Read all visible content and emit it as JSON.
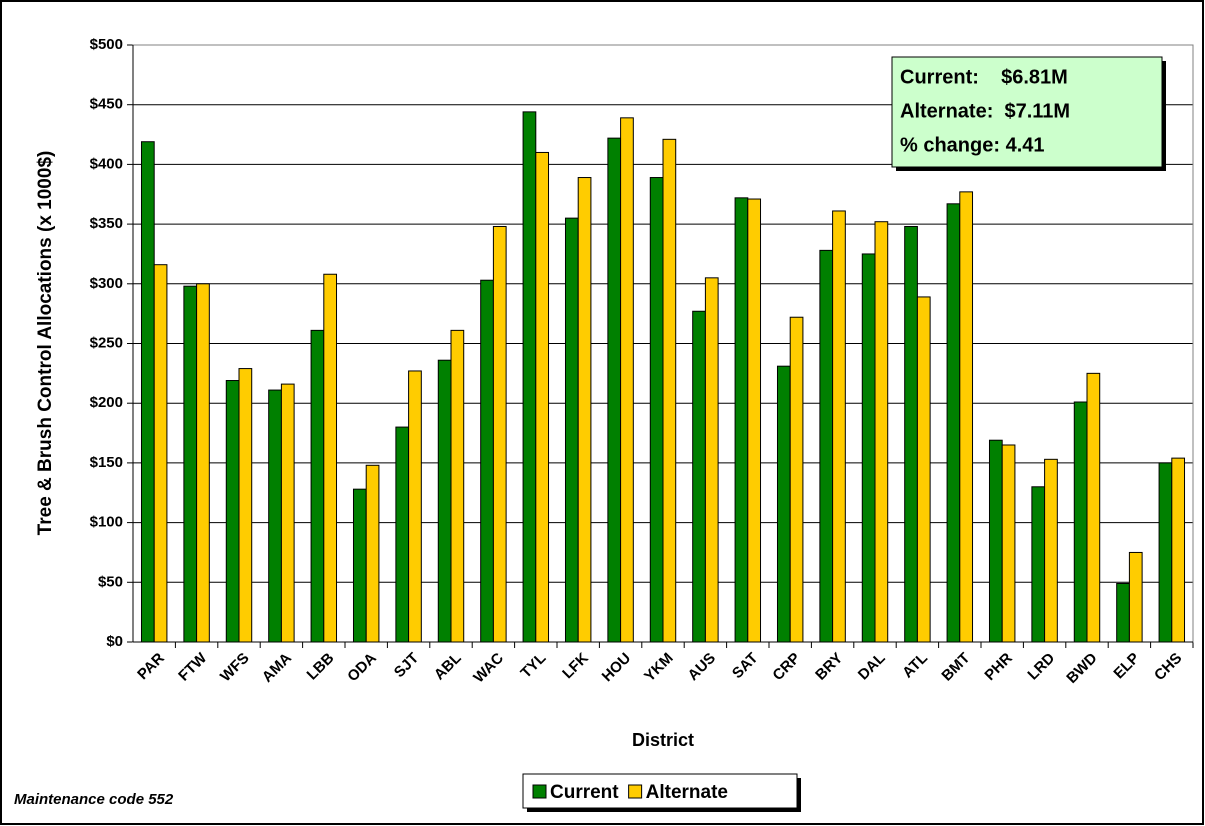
{
  "chart_data": {
    "type": "bar",
    "y_label": "Tree & Brush Control Allocations (x 1000$)",
    "x_label": "District",
    "footnote": "Maintenance code 552",
    "annotation": [
      "Current:    $6.81M",
      "Alternate:  $7.11M",
      "% change: 4.41"
    ],
    "categories": [
      "PAR",
      "FTW",
      "WFS",
      "AMA",
      "LBB",
      "ODA",
      "SJT",
      "ABL",
      "WAC",
      "TYL",
      "LFK",
      "HOU",
      "YKM",
      "AUS",
      "SAT",
      "CRP",
      "BRY",
      "DAL",
      "ATL",
      "BMT",
      "PHR",
      "LRD",
      "BWD",
      "ELP",
      "CHS"
    ],
    "series": [
      {
        "name": "Current",
        "color": "#008000",
        "values": [
          419,
          298,
          219,
          211,
          261,
          128,
          180,
          236,
          303,
          444,
          355,
          422,
          389,
          277,
          372,
          231,
          328,
          325,
          348,
          367,
          169,
          130,
          201,
          49,
          150
        ]
      },
      {
        "name": "Alternate",
        "color": "#ffcc00",
        "values": [
          316,
          300,
          229,
          216,
          308,
          148,
          227,
          261,
          348,
          410,
          389,
          439,
          421,
          305,
          371,
          272,
          361,
          352,
          289,
          377,
          165,
          153,
          225,
          75,
          154
        ]
      }
    ],
    "ylim": [
      0,
      500
    ],
    "yticks": [
      {
        "value": 0,
        "label": "$0"
      },
      {
        "value": 50,
        "label": "$50"
      },
      {
        "value": 100,
        "label": "$100"
      },
      {
        "value": 150,
        "label": "$150"
      },
      {
        "value": 200,
        "label": "$200"
      },
      {
        "value": 250,
        "label": "$250"
      },
      {
        "value": 300,
        "label": "$300"
      },
      {
        "value": 350,
        "label": "$350"
      },
      {
        "value": 400,
        "label": "$400"
      },
      {
        "value": 450,
        "label": "$450"
      },
      {
        "value": 500,
        "label": "$500"
      }
    ],
    "grid": true,
    "legend": "bottom"
  }
}
